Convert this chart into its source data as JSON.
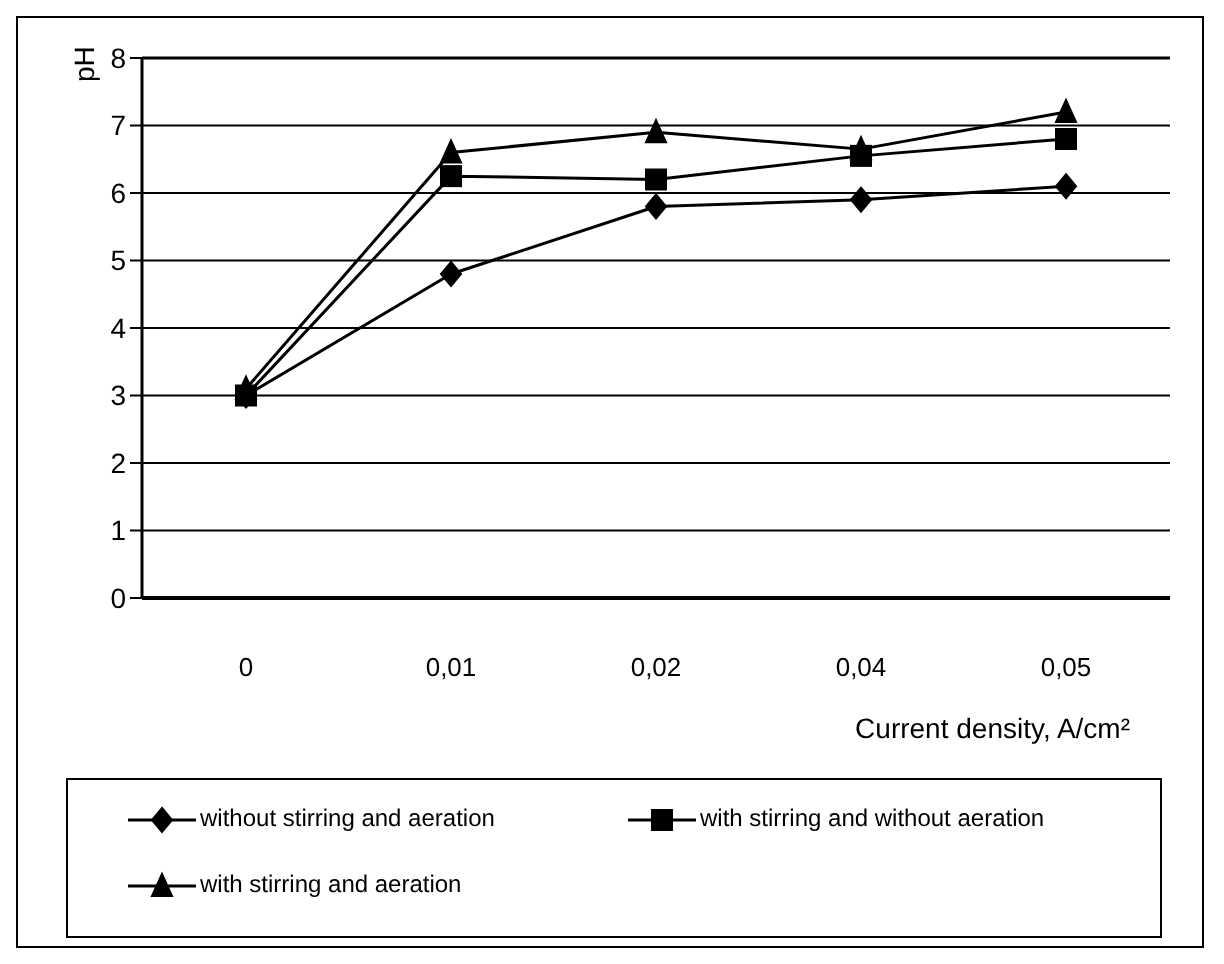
{
  "chart_data": {
    "type": "line",
    "ylabel": "pH",
    "xlabel": "Current density, A/cm²",
    "categories": [
      "0",
      "0,01",
      "0,02",
      "0,04",
      "0,05"
    ],
    "series": [
      {
        "name": "without stirring and aeration",
        "color": "#000000",
        "marker": "diamond",
        "values": [
          3.0,
          4.8,
          5.8,
          5.9,
          6.1
        ]
      },
      {
        "name": "with stirring and without aeration",
        "color": "#000000",
        "marker": "square",
        "values": [
          3.0,
          6.25,
          6.2,
          6.55,
          6.8
        ]
      },
      {
        "name": "with stirring and aeration",
        "color": "#000000",
        "marker": "triangle",
        "values": [
          3.1,
          6.6,
          6.9,
          6.65,
          7.2
        ]
      }
    ],
    "ylim": [
      0,
      8
    ],
    "yticks": [
      0,
      1,
      2,
      3,
      4,
      5,
      6,
      7,
      8
    ],
    "grid": "y",
    "legend": "bottom"
  }
}
